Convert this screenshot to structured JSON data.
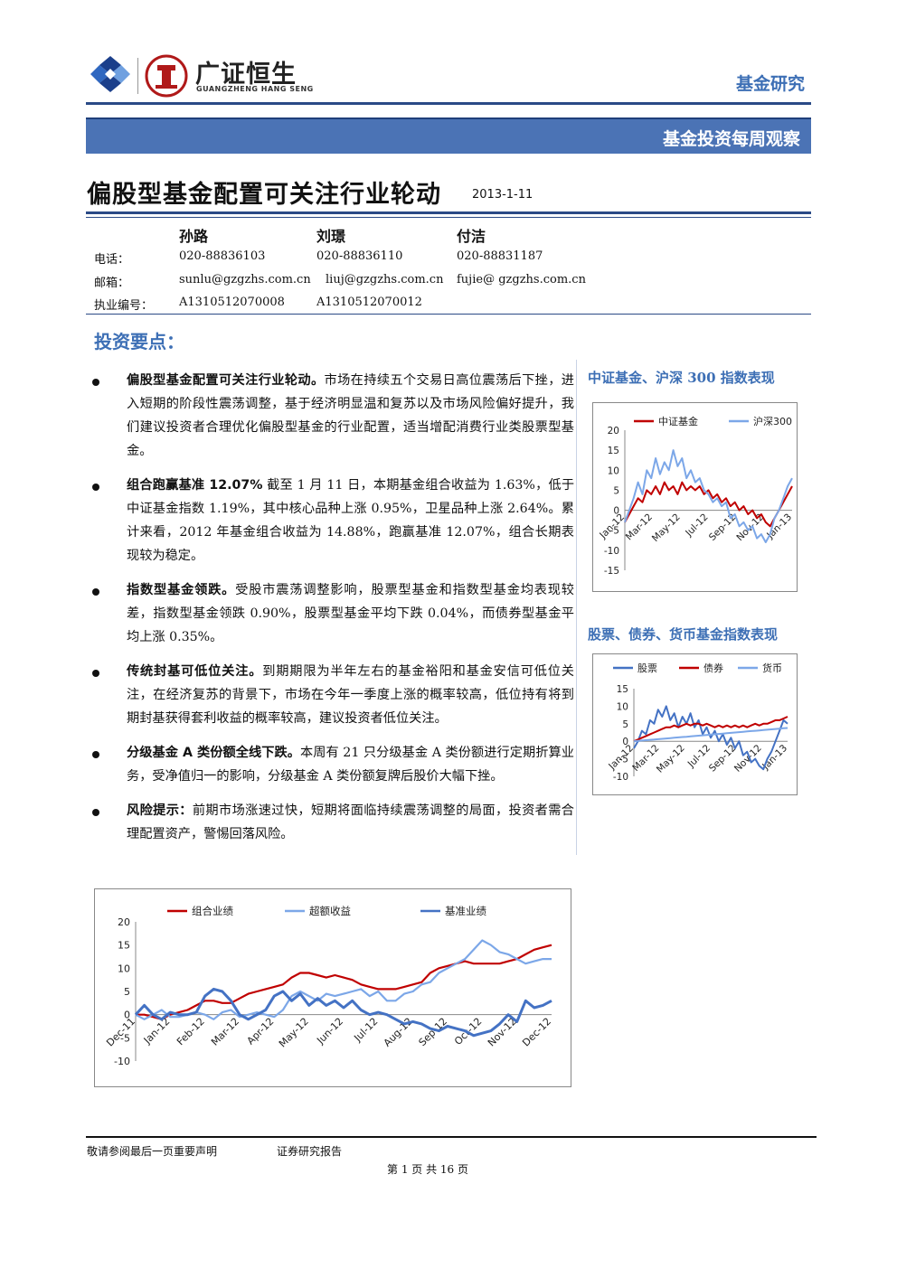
{
  "header": {
    "brand_name": "广证恒生",
    "brand_sub": "GUANGZHENG HANG SENG",
    "section_tag": "基金研究",
    "banner": "基金投资每周观察"
  },
  "title": "偏股型基金配置可关注行业轮动",
  "date": "2013-1-11",
  "authors": [
    {
      "name": "孙路",
      "phone": "020-88836103",
      "email": "sunlu@gzgzhs.com.cn",
      "license": "A1310512070008"
    },
    {
      "name": "刘璟",
      "phone": "020-88836110",
      "email": "liuj@gzgzhs.com.cn",
      "license": "A1310512070012"
    },
    {
      "name": "付洁",
      "phone": "020-88831187",
      "email": "fujie@ gzgzhs.com.cn",
      "license": ""
    }
  ],
  "contact_labels": {
    "phone": "电话：",
    "email": "邮箱：",
    "license": "执业编号："
  },
  "key_points_heading": "投资要点：",
  "bullets": [
    {
      "lead": "偏股型基金配置可关注行业轮动。",
      "text": "市场在持续五个交易日高位震荡后下挫，进入短期的阶段性震荡调整，基于经济明显温和复苏以及市场风险偏好提升，我们建议投资者合理优化偏股型基金的行业配置，适当增配消费行业类股票型基金。"
    },
    {
      "lead": "组合跑赢基准 12.07%",
      "text": "截至 1 月 11 日，本期基金组合收益为 1.63%，低于中证基金指数 1.19%，其中核心品种上涨 0.95%，卫星品种上涨 2.64%。累计来看，2012 年基金组合收益为 14.88%，跑赢基准 12.07%，组合长期表现较为稳定。"
    },
    {
      "lead": "指数型基金领跌。",
      "text": "受股市震荡调整影响，股票型基金和指数型基金均表现较差，指数型基金领跌 0.90%，股票型基金平均下跌 0.04%，而债券型基金平均上涨 0.35%。"
    },
    {
      "lead": "传统封基可低位关注。",
      "text": "到期期限为半年左右的基金裕阳和基金安信可低位关注，在经济复苏的背景下，市场在今年一季度上涨的概率较高，低位持有将到期封基获得套利收益的概率较高，建议投资者低位关注。"
    },
    {
      "lead": "分级基金 A 类份额全线下跌。",
      "text": "本周有 21 只分级基金 A 类份额进行定期折算业务，受净值归一的影响，分级基金 A 类份额复牌后股价大幅下挫。"
    },
    {
      "lead": "风险提示：",
      "text": "前期市场涨速过快，短期将面临持续震荡调整的局面，投资者需合理配置资产，警惕回落风险。"
    }
  ],
  "side_chart_titles": [
    "中证基金、沪深 300 指数表现",
    "股票、债券、货币基金指数表现"
  ],
  "footer": {
    "left": "敬请参阅最后一页重要声明",
    "mid": "证券研究报告",
    "page": "第 1 页 共 16 页"
  },
  "colors": {
    "accent": "#3d6fb5",
    "banner": "#4b73b5",
    "red": "#c00000",
    "blue": "#4472c4",
    "lightblue": "#7ca7e8"
  },
  "chart_data": [
    {
      "type": "line",
      "title": "中证基金、沪深 300 指数表现",
      "x_ticks": [
        "Jan-12",
        "Mar-12",
        "May-12",
        "Jul-12",
        "Sep-12",
        "Nov-12",
        "Jan-13"
      ],
      "y_ticks": [
        "20",
        "15",
        "10",
        "5",
        "0",
        "-5",
        "-10",
        "-15"
      ],
      "ylim": [
        -15,
        20
      ],
      "series": [
        {
          "name": "中证基金",
          "color": "#c00000",
          "values": [
            -3,
            -1,
            1,
            3,
            2,
            5,
            4,
            6,
            4,
            7,
            5,
            6,
            4,
            7,
            5,
            6,
            5,
            6,
            4,
            5,
            3,
            4,
            2,
            3,
            1,
            2,
            0,
            1,
            -1,
            0,
            -2,
            -1,
            -3,
            -4,
            -2,
            0,
            2,
            4,
            6
          ]
        },
        {
          "name": "沪深300",
          "color": "#7ca7e8",
          "values": [
            -3,
            0,
            3,
            7,
            4,
            10,
            8,
            13,
            9,
            12,
            10,
            15,
            11,
            13,
            8,
            10,
            7,
            8,
            5,
            4,
            2,
            3,
            1,
            2,
            -2,
            -1,
            -4,
            -3,
            -5,
            -4,
            -7,
            -6,
            -8,
            -6,
            -2,
            0,
            3,
            6,
            8
          ]
        }
      ]
    },
    {
      "type": "line",
      "title": "股票、债券、货币基金指数表现",
      "x_ticks": [
        "Jan-12",
        "Mar-12",
        "May-12",
        "Jul-12",
        "Sep-12",
        "Nov-12",
        "Jan-13"
      ],
      "y_ticks": [
        "15",
        "10",
        "5",
        "0",
        "-5",
        "-10"
      ],
      "ylim": [
        -10,
        15
      ],
      "series": [
        {
          "name": "股票",
          "color": "#4472c4",
          "values": [
            -2,
            0,
            3,
            2,
            6,
            5,
            9,
            7,
            10,
            6,
            8,
            4,
            7,
            5,
            8,
            4,
            6,
            2,
            4,
            1,
            3,
            0,
            2,
            -1,
            1,
            -2,
            0,
            -4,
            -3,
            -6,
            -5,
            -7,
            -8,
            -5,
            -3,
            0,
            3,
            6,
            5
          ]
        },
        {
          "name": "债券",
          "color": "#c00000",
          "values": [
            0,
            0.5,
            1,
            1.5,
            2,
            2.5,
            3,
            3.5,
            4,
            4,
            4.5,
            4,
            4.5,
            5,
            4.5,
            5,
            5,
            4.5,
            5,
            4.5,
            4,
            4.5,
            4,
            4.5,
            4,
            4.5,
            4,
            4.5,
            4,
            4.5,
            5,
            4.5,
            5,
            5,
            5.5,
            6,
            6,
            6.5,
            7
          ]
        },
        {
          "name": "货币",
          "color": "#7ca7e8",
          "values": [
            0,
            0.1,
            0.2,
            0.3,
            0.4,
            0.5,
            0.6,
            0.7,
            0.8,
            0.9,
            1,
            1.1,
            1.2,
            1.3,
            1.4,
            1.5,
            1.6,
            1.7,
            1.8,
            1.9,
            2,
            2.1,
            2.2,
            2.3,
            2.4,
            2.5,
            2.6,
            2.7,
            2.8,
            2.9,
            3,
            3.1,
            3.2,
            3.3,
            3.4,
            3.5,
            3.6,
            3.7,
            3.8
          ]
        }
      ]
    },
    {
      "type": "line",
      "title": "",
      "x_ticks": [
        "Dec-11",
        "Jan-12",
        "Feb-12",
        "Mar-12",
        "Apr-12",
        "May-12",
        "Jun-12",
        "Jul-12",
        "Aug-12",
        "Sep-12",
        "Oct-12",
        "Nov-12",
        "Dec-12"
      ],
      "y_ticks": [
        "20",
        "15",
        "10",
        "5",
        "0",
        "-5",
        "-10"
      ],
      "ylim": [
        -10,
        20
      ],
      "series": [
        {
          "name": "组合业绩",
          "color": "#c00000",
          "values": [
            0,
            0,
            -0.5,
            -1,
            0,
            0.5,
            1,
            2,
            3,
            3,
            2.5,
            2.5,
            3.5,
            4.5,
            5,
            5.5,
            6,
            6.5,
            8,
            9,
            9,
            8.5,
            8,
            8.5,
            8,
            7.5,
            6.5,
            6,
            5.5,
            5.5,
            5.5,
            6,
            6.5,
            7,
            9,
            10,
            10.5,
            11,
            11.5,
            11,
            11,
            11,
            11,
            11.5,
            12,
            13,
            14,
            14.5,
            15
          ]
        },
        {
          "name": "超额收益",
          "color": "#7ca7e8",
          "values": [
            0,
            -1,
            0,
            1,
            -0.5,
            -0.5,
            0,
            0.5,
            0,
            -1,
            0.5,
            1,
            -0.5,
            0,
            0.5,
            0,
            -0.5,
            1,
            4,
            5,
            4,
            3,
            4.5,
            4,
            4.5,
            5,
            5.5,
            4,
            5,
            3,
            3,
            4.5,
            5,
            6.5,
            7,
            9,
            10,
            11,
            12,
            14,
            16,
            15,
            13.5,
            13,
            12,
            11,
            11.5,
            12,
            12
          ]
        },
        {
          "name": "基准业绩",
          "color": "#4472c4",
          "values": [
            0,
            2,
            0,
            -1,
            0.5,
            0,
            0,
            0.5,
            4,
            5.5,
            5,
            3,
            0,
            -1,
            0,
            1,
            4,
            5,
            3,
            4.5,
            2,
            3.5,
            2,
            3,
            1.5,
            3,
            1,
            0,
            0.5,
            0,
            -1,
            -2,
            -1.5,
            -2,
            -3,
            -3.5,
            -2.5,
            -3,
            -3.5,
            -4.5,
            -4,
            -3.5,
            -2,
            0,
            -1.5,
            3,
            1.5,
            2,
            3
          ]
        }
      ]
    }
  ]
}
